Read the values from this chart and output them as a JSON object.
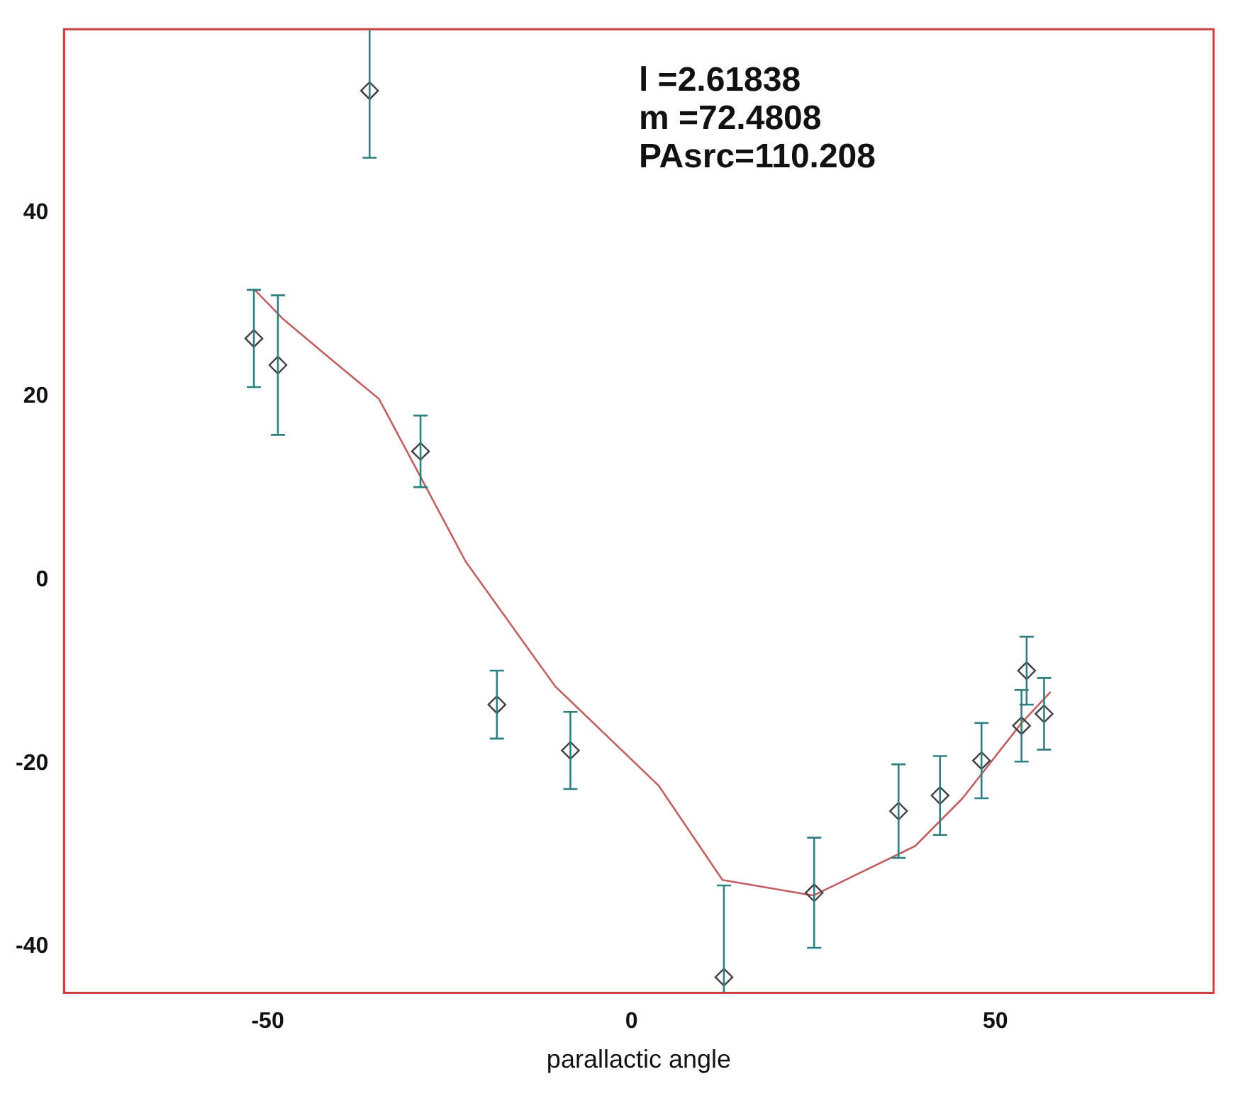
{
  "chart_data": {
    "type": "scatter",
    "xlabel": "parallactic angle",
    "annotations": [
      "l =2.61838",
      "m =72.4808",
      "PAsrc=110.208"
    ],
    "xlim": [
      -78,
      80
    ],
    "ylim": [
      -45,
      60
    ],
    "xticks": [
      -50,
      0,
      50
    ],
    "yticks": [
      -40,
      -20,
      0,
      20,
      40
    ],
    "grid": false,
    "legend": false,
    "series": [
      {
        "type": "scatter",
        "marker": "diamond",
        "color": "#404040",
        "x": [
          -51.9,
          -48.6,
          -36.0,
          -29.0,
          -18.5,
          -8.4,
          12.7,
          25.1,
          36.7,
          42.4,
          48.1,
          53.6,
          54.3,
          56.7
        ],
        "values": [
          26.3,
          23.4,
          53.3,
          14.0,
          -13.6,
          -18.6,
          -43.3,
          -34.1,
          -25.2,
          -23.5,
          -19.7,
          -15.9,
          -9.9,
          -14.6
        ],
        "errors": [
          5.3,
          7.6,
          7.3,
          3.9,
          3.7,
          4.2,
          10,
          6,
          5.1,
          4.3,
          4.1,
          3.9,
          3.7,
          3.9
        ]
      },
      {
        "type": "line",
        "marker": "none",
        "line_style": "solid",
        "color": "#c06060",
        "x": [
          -51.9,
          -48,
          -42,
          -34.7,
          -22.8,
          -10.5,
          3.7,
          12.5,
          25,
          39,
          45.5,
          53.6,
          57.6
        ],
        "values": [
          31.7,
          28.5,
          24.5,
          19.7,
          2,
          -11.6,
          -22.4,
          -32.7,
          -34.4,
          -29,
          -23.8,
          -15.6,
          -12.2
        ]
      }
    ]
  }
}
